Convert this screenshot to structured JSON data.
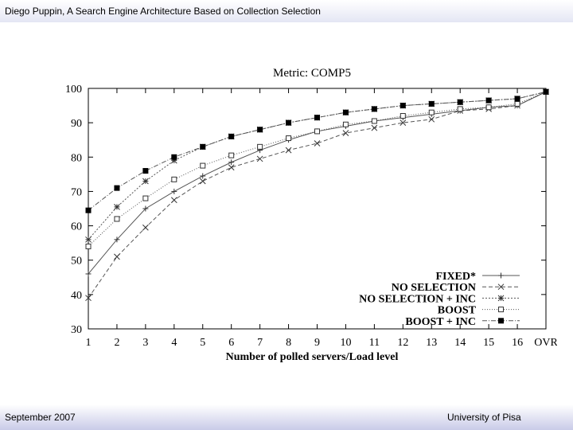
{
  "header": {
    "title": "Diego Puppin, A Search Engine Architecture Based on Collection Selection"
  },
  "footer": {
    "left": "September 2007",
    "right": "University of Pisa"
  },
  "chart_data": {
    "type": "line",
    "title": "Metric: COMP5",
    "xlabel": "Number of polled servers/Load level",
    "ylabel": "",
    "categories": [
      "1",
      "2",
      "3",
      "4",
      "5",
      "6",
      "7",
      "8",
      "9",
      "10",
      "11",
      "12",
      "13",
      "14",
      "15",
      "16",
      "OVR"
    ],
    "ylim": [
      30,
      100
    ],
    "yticks": [
      30,
      40,
      50,
      60,
      70,
      80,
      90,
      100
    ],
    "grid": false,
    "legend_position": "bottom-right",
    "series": [
      {
        "name": "FIXED*",
        "marker": "plus",
        "dash": "solid",
        "values": [
          46,
          56,
          65,
          70,
          74.5,
          78.5,
          82,
          85,
          87.5,
          89,
          90.5,
          91.5,
          92.5,
          93.5,
          94.5,
          95,
          99
        ]
      },
      {
        "name": "NO SELECTION",
        "marker": "cross",
        "dash": "dash",
        "values": [
          39,
          51,
          59.5,
          67.5,
          73,
          77,
          79.5,
          82,
          84,
          87,
          88.5,
          90,
          91,
          93.5,
          94,
          95,
          99
        ]
      },
      {
        "name": "NO SELECTION + INC",
        "marker": "asterisk",
        "dash": "dot",
        "values": [
          56,
          65.5,
          73,
          79,
          83,
          86,
          88,
          90,
          91.5,
          93,
          94,
          95,
          95.5,
          96,
          96.5,
          97,
          99
        ]
      },
      {
        "name": "BOOST",
        "marker": "square-open",
        "dash": "dot-fine",
        "values": [
          54,
          62,
          68,
          73.5,
          77.5,
          80.5,
          83,
          85.5,
          87.5,
          89.5,
          90.5,
          92,
          93,
          94,
          94.5,
          95.5,
          99
        ]
      },
      {
        "name": "BOOST + INC",
        "marker": "square-filled",
        "dash": "dash-dot",
        "values": [
          64.5,
          71,
          76,
          80,
          83,
          86,
          88,
          90,
          91.5,
          93,
          94,
          95,
          95.5,
          96,
          96.5,
          97,
          99
        ]
      }
    ]
  }
}
